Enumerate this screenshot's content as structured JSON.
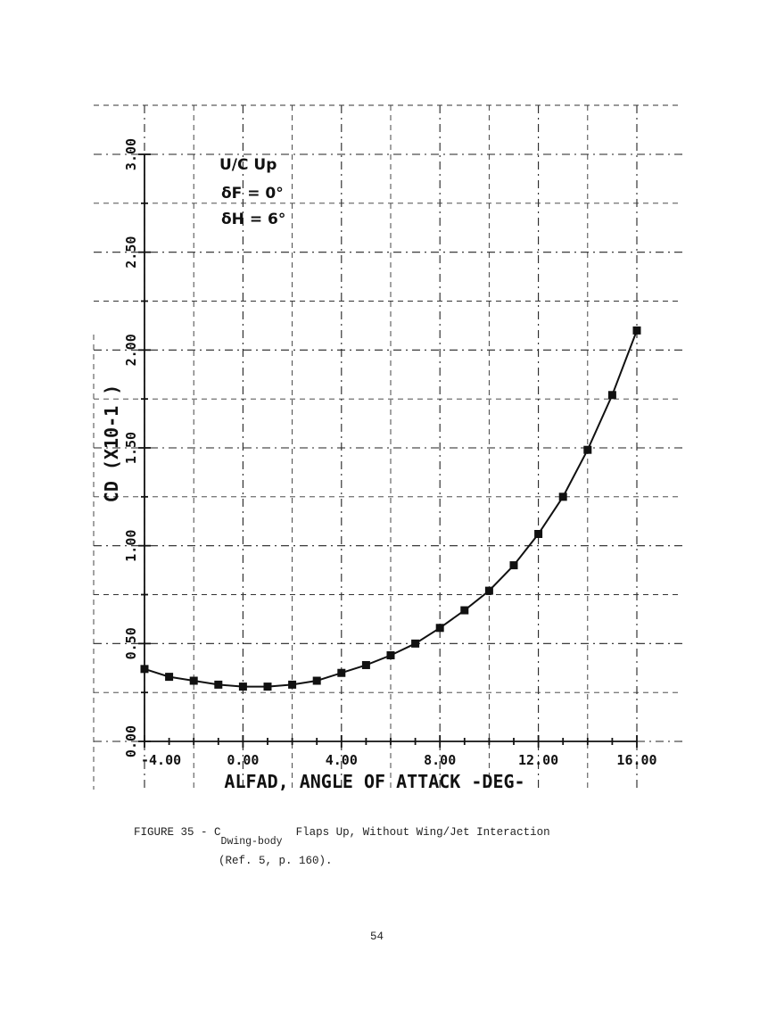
{
  "chart_data": {
    "type": "line",
    "xlabel": "ALFAD, ANGLE OF ATTACK -DEG-",
    "ylabel": "CD (X10-1 )",
    "xlim": [
      -4,
      16
    ],
    "ylim": [
      0,
      3
    ],
    "x_ticks": [
      "-4.00",
      "0.00",
      "4.00",
      "8.00",
      "12.00",
      "16.00"
    ],
    "y_ticks": [
      "0.00",
      "0.50",
      "1.00",
      "1.50",
      "2.00",
      "2.50",
      "3.00"
    ],
    "grid": true,
    "annotations": [
      "U/C Up",
      "δF = 0°",
      "δH = 6°"
    ],
    "series": [
      {
        "x": [
          -4,
          -3,
          -2,
          -1,
          0,
          1,
          2,
          3,
          4,
          5,
          6,
          7,
          8,
          9,
          10,
          11,
          12,
          13,
          14,
          15,
          16
        ],
        "values": [
          0.37,
          0.33,
          0.31,
          0.29,
          0.28,
          0.28,
          0.29,
          0.31,
          0.35,
          0.39,
          0.44,
          0.5,
          0.58,
          0.67,
          0.77,
          0.9,
          1.06,
          1.25,
          1.49,
          1.77,
          2.1
        ]
      }
    ]
  },
  "caption": {
    "prefix": "FIGURE 35 - C",
    "sub_d": "D",
    "sub_rest": "wing-body",
    "text": "Flaps Up, Without Wing/Jet Interaction",
    "ref": "(Ref. 5, p. 160)."
  },
  "page_number": "54"
}
